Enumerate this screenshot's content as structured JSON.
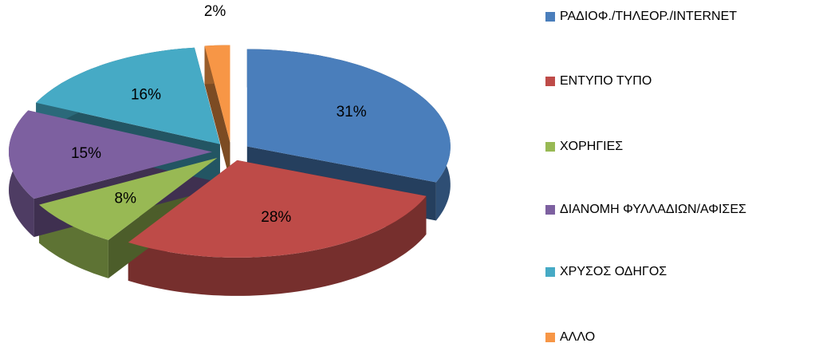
{
  "chart_data": {
    "type": "pie",
    "categories": [
      "ΡΑΔΙΟΦ./ΤΗΛΕΟΡ./INTERNET",
      "ΕΝΤΥΠΟ ΤΥΠΟ",
      "ΧΟΡΗΓΙΕΣ",
      "ΔΙΑΝΟΜΗ ΦΥΛΛΑΔΙΩΝ/ΑΦΙΣΕΣ",
      "ΧΡΥΣΟΣ ΟΔΗΓΟΣ",
      "ΑΛΛΟ"
    ],
    "values": [
      31,
      28,
      8,
      15,
      16,
      2
    ],
    "value_labels": [
      "31%",
      "28%",
      "8%",
      "15%",
      "16%",
      "2%"
    ],
    "colors": [
      "#4a7ebb",
      "#be4b48",
      "#98b954",
      "#7d60a0",
      "#46aac5",
      "#f79646"
    ],
    "legend": "right"
  }
}
